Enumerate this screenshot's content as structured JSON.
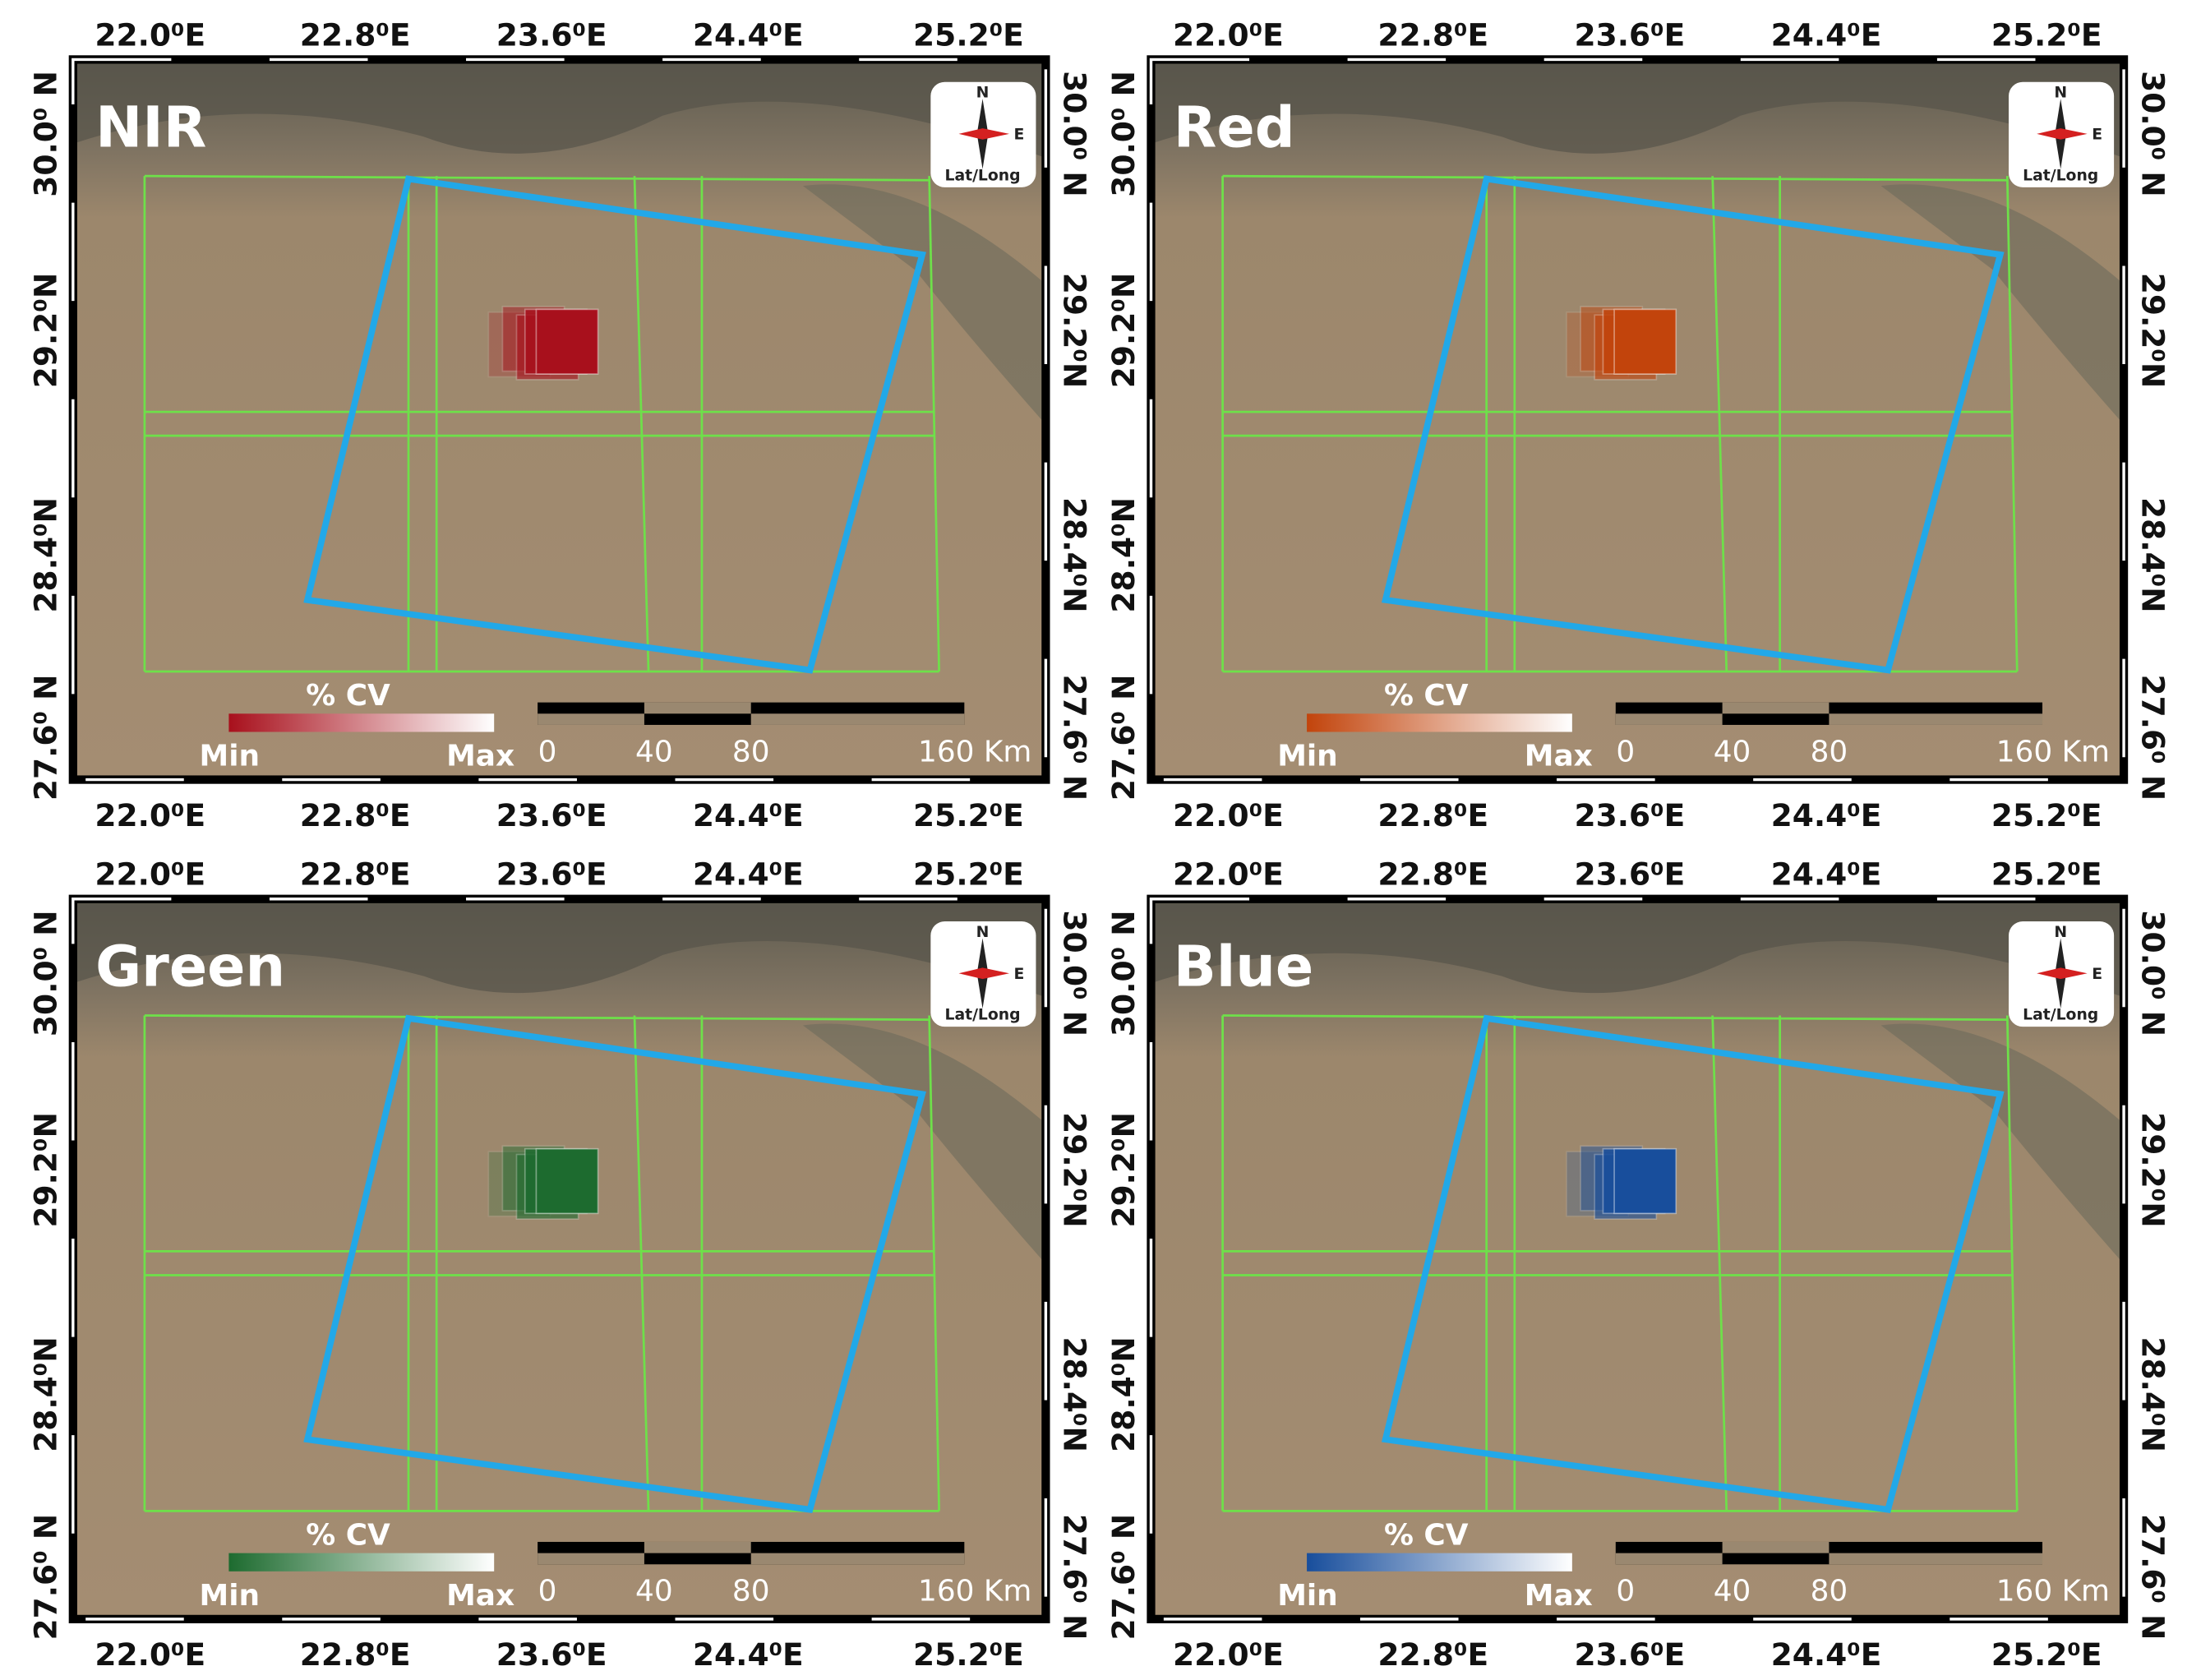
{
  "lon_ticks": [
    "22.0⁰E",
    "22.8⁰E",
    "23.6⁰E",
    "24.4⁰E",
    "25.2⁰E"
  ],
  "lat_ticks": [
    "30.0⁰ N",
    "29.2⁰N",
    "28.4⁰N",
    "27.6⁰ N"
  ],
  "compass": {
    "north": "N",
    "east": "E",
    "label": "Lat/Long"
  },
  "legend": {
    "title": "% CV",
    "min": "Min",
    "max": "Max"
  },
  "scale_bar": {
    "labels": [
      "0",
      "40",
      "80",
      "160 Km"
    ]
  },
  "panels": [
    {
      "label": "NIR",
      "color": "#a8101c"
    },
    {
      "label": "Red",
      "color": "#c2440c"
    },
    {
      "label": "Green",
      "color": "#1d6b2f"
    },
    {
      "label": "Blue",
      "color": "#184e9c"
    }
  ]
}
